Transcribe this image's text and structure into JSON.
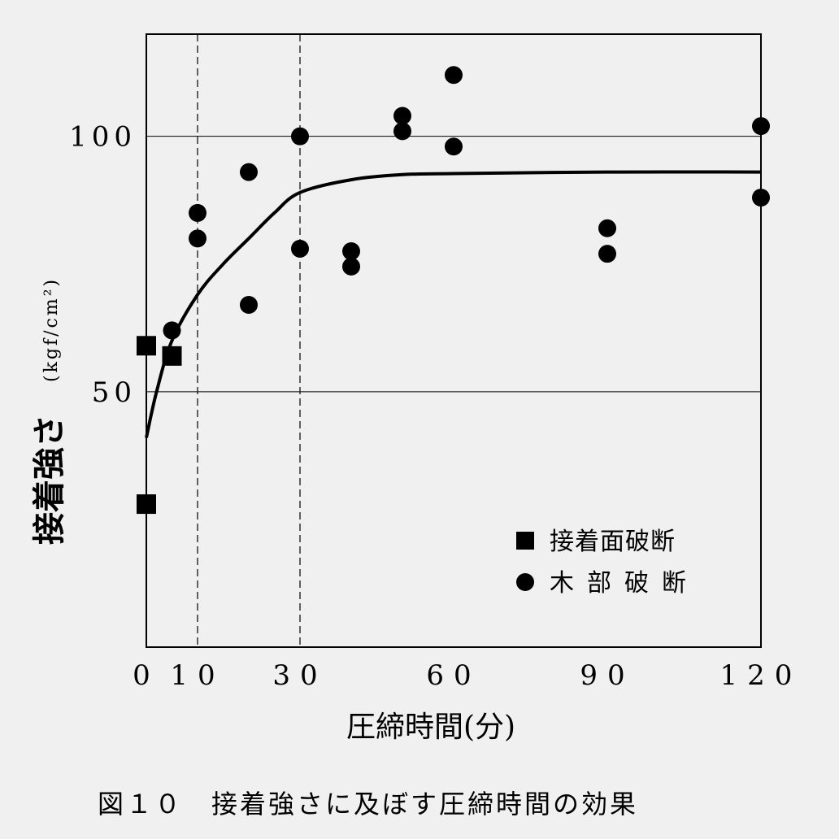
{
  "chart_data": {
    "type": "scatter",
    "ylabel": "接着強さ",
    "ylabel_unit": "(kgf/cm²)",
    "xlabel": "圧締時間(分)",
    "caption": "図１０　接着強さに及ぼす圧締時間の効果",
    "x_ticks": [
      "0",
      "10",
      "30",
      "60",
      "90",
      "120"
    ],
    "x_tick_values": [
      0,
      10,
      30,
      60,
      90,
      120
    ],
    "y_ticks": [
      "50",
      "100"
    ],
    "y_tick_values": [
      50,
      100
    ],
    "xlim": [
      0,
      120
    ],
    "ylim": [
      0,
      120
    ],
    "grid": "horizontal at 50 and 100; vertical dashed at 10 and 30",
    "vertical_dashed_lines": [
      10,
      30
    ],
    "legend_position": "bottom-right",
    "series": [
      {
        "name": "接着面破断",
        "marker": "square",
        "points": [
          [
            0,
            59
          ],
          [
            0,
            28
          ],
          [
            5,
            57
          ]
        ]
      },
      {
        "name": "木部破断",
        "marker": "circle",
        "points": [
          [
            5,
            62
          ],
          [
            10,
            85
          ],
          [
            10,
            80
          ],
          [
            20,
            93
          ],
          [
            20,
            67
          ],
          [
            30,
            100
          ],
          [
            30,
            78
          ],
          [
            40,
            77.5
          ],
          [
            40,
            74.5
          ],
          [
            50,
            104
          ],
          [
            50,
            101
          ],
          [
            60,
            112
          ],
          [
            60,
            98
          ],
          [
            90,
            82
          ],
          [
            90,
            77
          ],
          [
            120,
            102
          ],
          [
            120,
            88
          ]
        ]
      },
      {
        "name": "",
        "type": "line",
        "points": [
          [
            0,
            41
          ],
          [
            2,
            50
          ],
          [
            5,
            60
          ],
          [
            10,
            69
          ],
          [
            15,
            75
          ],
          [
            20,
            80
          ],
          [
            25,
            85
          ],
          [
            30,
            89
          ],
          [
            40,
            91.5
          ],
          [
            50,
            92.5
          ],
          [
            60,
            92.7
          ],
          [
            90,
            93
          ],
          [
            120,
            93
          ]
        ]
      }
    ]
  }
}
